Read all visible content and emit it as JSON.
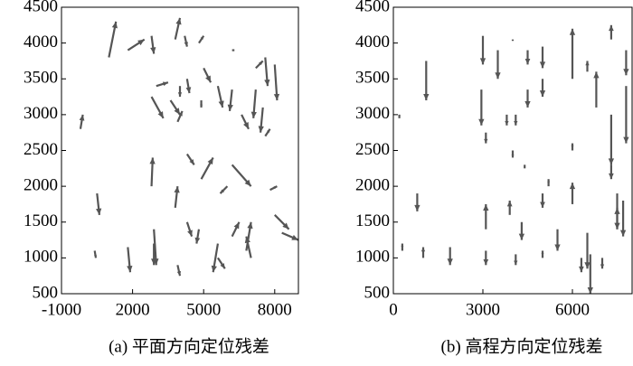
{
  "chart_data": [
    {
      "type": "quiver",
      "caption": "(a) 平面方向定位残差",
      "color": "#555555",
      "xlim": [
        -1000,
        9000
      ],
      "ylim": [
        500,
        4500
      ],
      "xticks": [
        -1000,
        2000,
        5000,
        8000
      ],
      "yticks": [
        500,
        1000,
        1500,
        2000,
        2500,
        3000,
        3500,
        4000,
        4500
      ],
      "x": [
        1000,
        1800,
        2800,
        3800,
        4200,
        4800,
        6200,
        7200,
        7600,
        8000,
        3000,
        4300,
        5000,
        5600,
        4000,
        6200,
        7200,
        2800,
        3600,
        4900,
        6600,
        7500,
        -200,
        3900,
        7600,
        4300,
        2800,
        4900,
        6200,
        6000,
        7800,
        500,
        3800,
        2900,
        4300,
        4800,
        5600,
        6200,
        6800,
        7000,
        8300,
        8000,
        1800,
        2900,
        3900,
        5600,
        400
      ],
      "y": [
        3800,
        3900,
        4100,
        4050,
        4100,
        4000,
        3900,
        3650,
        3800,
        3700,
        3400,
        3500,
        3650,
        3400,
        3400,
        3350,
        3350,
        3250,
        3200,
        3200,
        3000,
        3100,
        2800,
        2900,
        2700,
        2450,
        2000,
        2100,
        2300,
        2000,
        1950,
        1900,
        1700,
        1400,
        1500,
        1400,
        1200,
        1300,
        1100,
        1000,
        1350,
        1600,
        1150,
        1200,
        900,
        1000,
        1100
      ],
      "u": [
        300,
        700,
        100,
        200,
        100,
        200,
        100,
        300,
        100,
        100,
        500,
        100,
        300,
        200,
        0,
        -100,
        -100,
        500,
        400,
        0,
        300,
        -100,
        100,
        200,
        200,
        300,
        50,
        500,
        800,
        -300,
        300,
        100,
        100,
        100,
        200,
        -100,
        -200,
        300,
        200,
        -200,
        700,
        600,
        100,
        0,
        100,
        300,
        50
      ],
      "v": [
        500,
        150,
        -250,
        300,
        -150,
        100,
        0,
        100,
        -400,
        -500,
        50,
        -200,
        -200,
        -300,
        -150,
        -300,
        -400,
        -300,
        -200,
        -100,
        -200,
        -350,
        200,
        150,
        100,
        -150,
        400,
        300,
        -300,
        -100,
        50,
        -300,
        300,
        -500,
        -200,
        -200,
        -400,
        200,
        400,
        300,
        -100,
        -200,
        -350,
        -300,
        -150,
        -150,
        -100
      ]
    },
    {
      "type": "quiver",
      "caption": "(b) 高程方向定位残差",
      "color": "#555555",
      "xlim": [
        0,
        8000
      ],
      "ylim": [
        500,
        4500
      ],
      "xticks": [
        0,
        3000,
        6000
      ],
      "yticks": [
        500,
        1000,
        1500,
        2000,
        2500,
        3000,
        3500,
        4000,
        4500
      ],
      "x": [
        1100,
        2950,
        3000,
        3500,
        4000,
        4500,
        5000,
        4500,
        5000,
        6000,
        6500,
        6800,
        7300,
        7800,
        7300,
        7800,
        200,
        3100,
        3800,
        4000,
        4100,
        4400,
        6000,
        7300,
        7500,
        7700,
        800,
        3100,
        3900,
        4300,
        5000,
        5200,
        5500,
        6000,
        6500,
        7500,
        1000,
        1900,
        3100,
        4100,
        5000,
        6600,
        6300,
        7000,
        300
      ],
      "y": [
        3750,
        3350,
        4100,
        3900,
        4050,
        3900,
        3950,
        3350,
        3500,
        3500,
        3600,
        3100,
        4050,
        3900,
        3000,
        3400,
        3000,
        2750,
        3000,
        2500,
        3000,
        2300,
        2500,
        2300,
        1900,
        1800,
        1900,
        1400,
        1600,
        1500,
        1900,
        2000,
        1400,
        1750,
        1350,
        1400,
        1000,
        1150,
        1100,
        1050,
        1000,
        1050,
        1000,
        1000,
        1100
      ],
      "u": [
        0,
        0,
        0,
        0,
        0,
        0,
        0,
        0,
        0,
        0,
        0,
        0,
        0,
        0,
        0,
        0,
        0,
        0,
        0,
        0,
        0,
        0,
        0,
        0,
        0,
        0,
        0,
        0,
        0,
        0,
        0,
        0,
        0,
        0,
        0,
        0,
        0,
        0,
        0,
        0,
        0,
        0,
        0,
        0,
        0
      ],
      "v": [
        -550,
        -500,
        -400,
        -400,
        -20,
        -200,
        -300,
        -250,
        -250,
        700,
        150,
        500,
        200,
        -350,
        -700,
        -800,
        -50,
        -150,
        -150,
        -100,
        -150,
        -50,
        100,
        -200,
        -500,
        -500,
        -250,
        350,
        200,
        -250,
        -200,
        100,
        -300,
        300,
        -500,
        300,
        150,
        -250,
        -200,
        -150,
        100,
        -550,
        -200,
        -150,
        100
      ]
    }
  ]
}
